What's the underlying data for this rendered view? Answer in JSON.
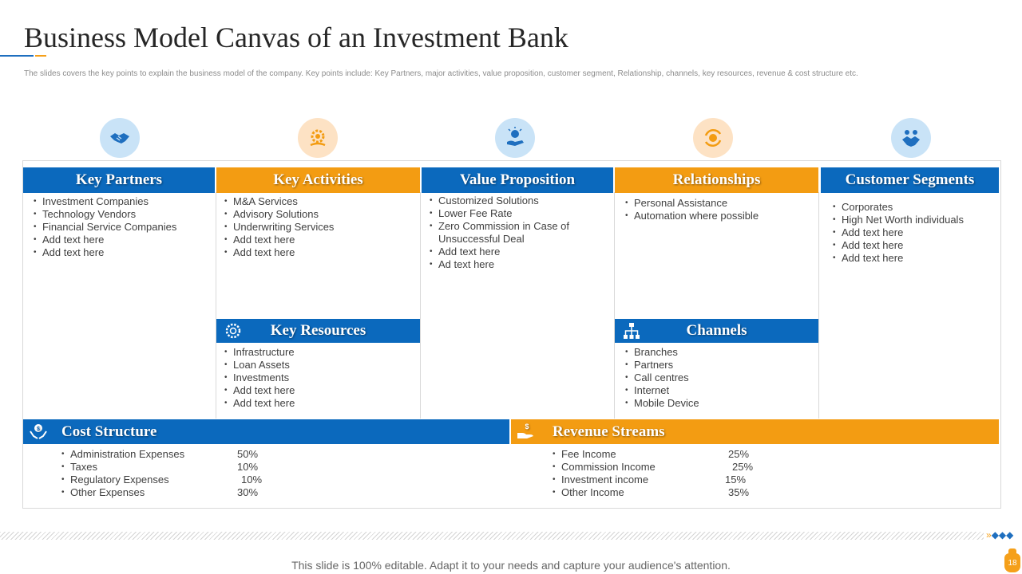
{
  "header": {
    "title": "Business Model Canvas of an Investment Bank",
    "subtitle": "The slides covers the key points to explain the business model of the company. Key points include: Key Partners, major activities, value proposition, customer segment, Relationship, channels, key resources, revenue & cost structure etc."
  },
  "top_icons": [
    "handshake-icon",
    "gear-hand-icon",
    "idea-hand-icon",
    "cycle-coin-icon",
    "users-handshake-icon"
  ],
  "canvas": {
    "key_partners": {
      "title": "Key Partners",
      "items": [
        "Investment Companies",
        "Technology Vendors",
        "Financial Service Companies",
        "Add text here",
        "Add text here"
      ]
    },
    "key_activities": {
      "title": "Key Activities",
      "items": [
        "M&A Services",
        "Advisory Solutions",
        "Underwriting Services",
        "Add text here",
        "Add text here"
      ]
    },
    "value_proposition": {
      "title": "Value Proposition",
      "items": [
        "Customized Solutions",
        "Lower Fee Rate",
        "Zero Commission in Case of",
        "Unsuccessful Deal",
        "Add text here",
        "Ad text here"
      ]
    },
    "relationships": {
      "title": "Relationships",
      "items": [
        "Personal Assistance",
        "Automation where possible"
      ]
    },
    "customer_segments": {
      "title": "Customer Segments",
      "items": [
        "Corporates",
        "High Net Worth individuals",
        "Add text here",
        "Add text here",
        "Add text here"
      ]
    },
    "key_resources": {
      "title": "Key Resources",
      "icon": "gear-cluster-icon",
      "items": [
        "Infrastructure",
        "Loan Assets",
        "Investments",
        "Add text here",
        "Add text here"
      ]
    },
    "channels": {
      "title": "Channels",
      "icon": "org-chart-icon",
      "items": [
        "Branches",
        "Partners",
        "Call centres",
        "Internet",
        "Mobile Device"
      ]
    },
    "cost_structure": {
      "title": "Cost Structure",
      "icon": "hands-coin-icon",
      "rows": [
        {
          "label": "Administration Expenses",
          "value": "50%"
        },
        {
          "label": "Taxes",
          "value": "10%"
        },
        {
          "label": "Regulatory Expenses",
          "value": "10%"
        },
        {
          "label": "Other Expenses",
          "value": "30%"
        }
      ]
    },
    "revenue_streams": {
      "title": "Revenue Streams",
      "icon": "hand-dollar-icon",
      "rows": [
        {
          "label": "Fee Income",
          "value": "25%"
        },
        {
          "label": "Commission Income",
          "value": "25%"
        },
        {
          "label": "Investment income",
          "value": "15%"
        },
        {
          "label": "Other Income",
          "value": "35%"
        }
      ]
    }
  },
  "footer": {
    "text": "This slide is 100% editable. Adapt it to your needs and capture your audience's attention.",
    "page_number": "18"
  },
  "colors": {
    "blue": "#0b69bd",
    "orange": "#f39c12",
    "icon_bg_blue": "#c9e3f7",
    "icon_bg_orange": "#fde2c4"
  }
}
